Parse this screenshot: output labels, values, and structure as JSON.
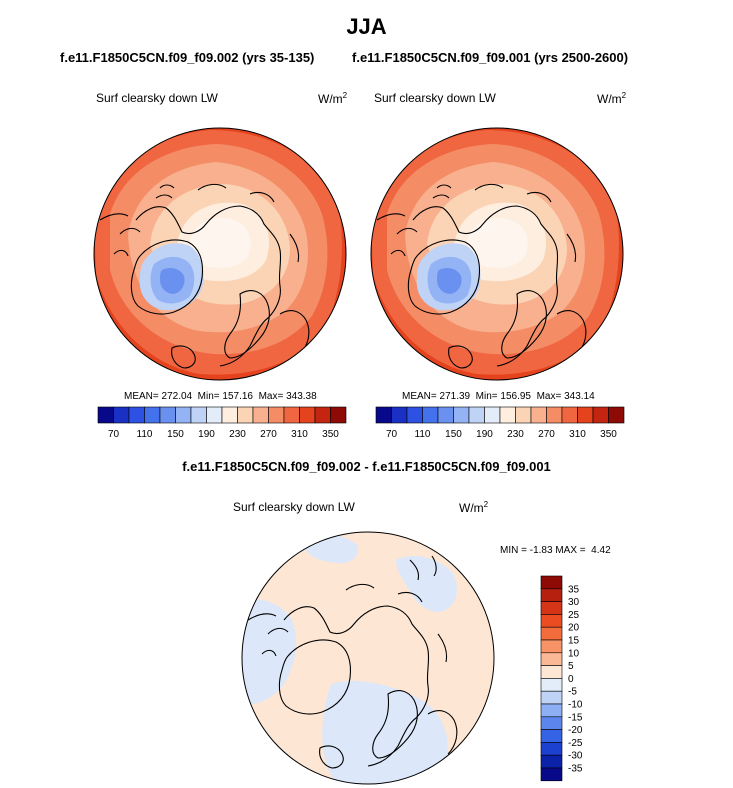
{
  "chart_data": [
    {
      "type": "heatmap",
      "projection": "north polar stereographic",
      "figure_title": "JJA",
      "title": "f.e11.F1850C5CN.f09_f09.002 (yrs 35-135)",
      "variable": "Surf clearsky down LW",
      "units_base": "W/m",
      "units_exp": "2",
      "mean_label": "MEAN=",
      "mean": "272.04",
      "min_label": "Min=",
      "min": "157.16",
      "max_label": "Max=",
      "max": "343.38",
      "colorbar_ticks": [
        "70",
        "110",
        "150",
        "190",
        "230",
        "270",
        "310",
        "350"
      ],
      "colorbar_min": 50,
      "colorbar_step": 20,
      "colorbar_colors": [
        "#08088a",
        "#1a2fc4",
        "#2d52e3",
        "#4471ec",
        "#6b91f0",
        "#94b3f5",
        "#bfd3f7",
        "#e2edf9",
        "#fdeee0",
        "#fbd3b5",
        "#f8b08e",
        "#f48c66",
        "#ef6640",
        "#e4431e",
        "#c32511",
        "#8e0a04"
      ],
      "field_note": "values lowest over Greenland ice sheet, increasing toward lower latitudes"
    },
    {
      "type": "heatmap",
      "projection": "north polar stereographic",
      "title": "f.e11.F1850C5CN.f09_f09.001 (yrs 2500-2600)",
      "variable": "Surf clearsky down LW",
      "units_base": "W/m",
      "units_exp": "2",
      "mean_label": "MEAN=",
      "mean": "271.39",
      "min_label": "Min=",
      "min": "156.95",
      "max_label": "Max=",
      "max": "343.14",
      "colorbar_ticks": [
        "70",
        "110",
        "150",
        "190",
        "230",
        "270",
        "310",
        "350"
      ],
      "colorbar_min": 50,
      "colorbar_step": 20,
      "colorbar_colors": [
        "#08088a",
        "#1a2fc4",
        "#2d52e3",
        "#4471ec",
        "#6b91f0",
        "#94b3f5",
        "#bfd3f7",
        "#e2edf9",
        "#fdeee0",
        "#fbd3b5",
        "#f8b08e",
        "#f48c66",
        "#ef6640",
        "#e4431e",
        "#c32511",
        "#8e0a04"
      ]
    },
    {
      "type": "heatmap",
      "projection": "north polar stereographic",
      "title": "f.e11.F1850C5CN.f09_f09.002 - f.e11.F1850C5CN.f09_f09.001",
      "variable": "Surf clearsky down LW",
      "units_base": "W/m",
      "units_exp": "2",
      "min_label": "MIN =",
      "min": "-1.83",
      "max_label": "MAX =",
      "max": "4.42",
      "colorbar_ticks": [
        "35",
        "30",
        "25",
        "20",
        "15",
        "10",
        "5",
        "0",
        "-5",
        "-10",
        "-15",
        "-20",
        "-25",
        "-30",
        "-35"
      ],
      "colorbar_colors_top_to_bottom": [
        "#8e0a04",
        "#b5200f",
        "#d63416",
        "#ec4c22",
        "#f26c3c",
        "#f79366",
        "#fab896",
        "#fde6d4",
        "#e2edf9",
        "#bfd3f7",
        "#8db0f4",
        "#5c86ee",
        "#3563e6",
        "#1c40cf",
        "#0c22a8",
        "#08088a"
      ],
      "field_note": "differences mostly 0 to 5 with small -5 to 0 areas over North Atlantic, Alaska and Siberia"
    }
  ],
  "colors": {
    "ocean_mid": "#ef6640",
    "ocean_high": "#e4431e",
    "arctic": "#fdeee0",
    "diff_pos": "#fde6d4",
    "diff_neg": "#dce8f9"
  }
}
